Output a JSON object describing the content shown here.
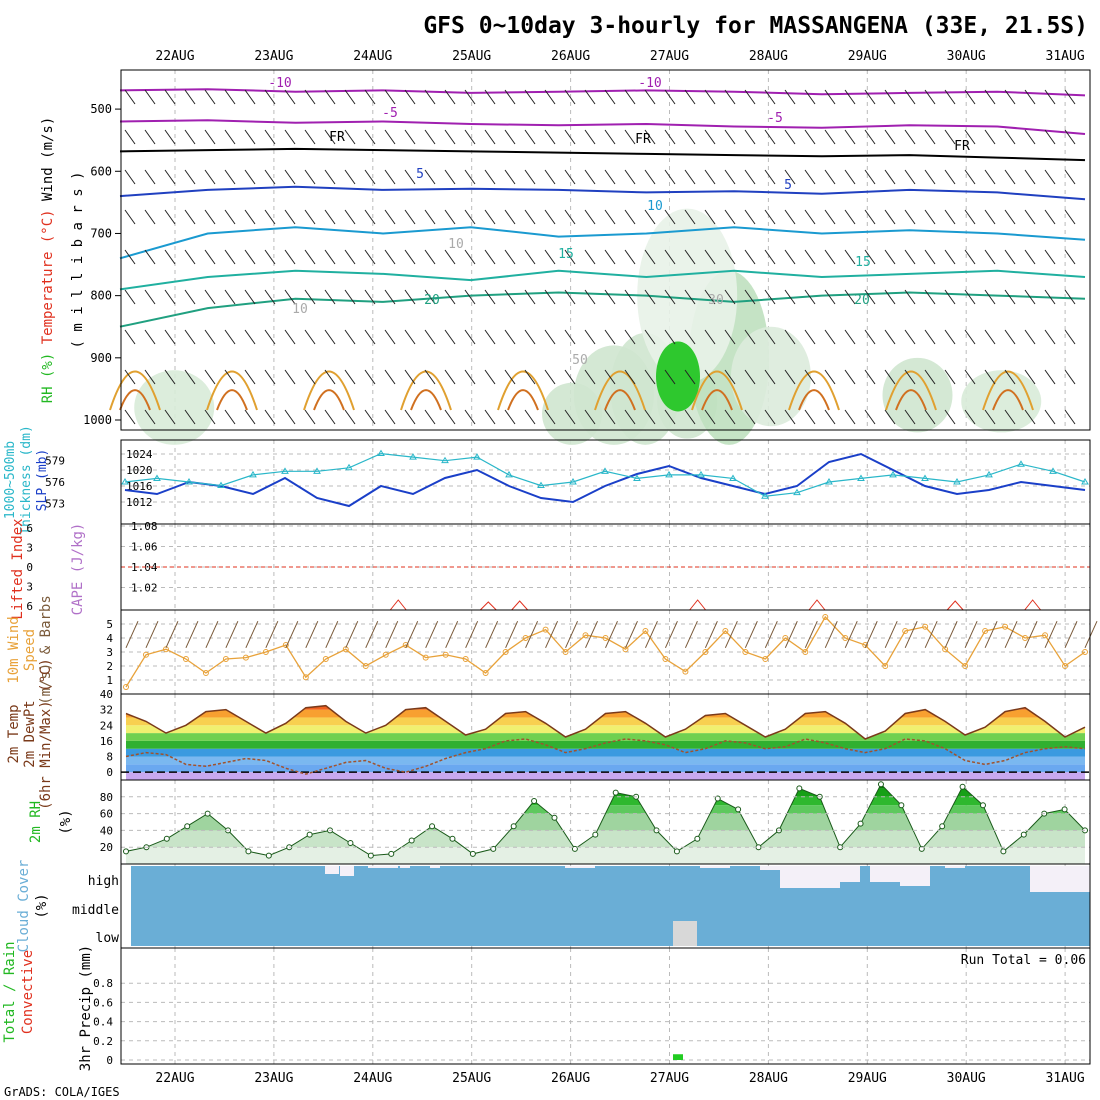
{
  "title": "GFS 0~10day 3-hourly for MASSANGENA (33E, 21.5S)",
  "credit": "GrADS: COLA/IGES",
  "colors": {
    "frame": "#000000",
    "grid": "#bbbbbb",
    "slp": "#1a3fc8",
    "thickness": "#2ab7c9",
    "lifted": "#e0301e",
    "cape": "#b070c8",
    "wind_speed": "#e8a23a",
    "wind_barb": "#7a5a3a",
    "temp": "#7a3a1a",
    "dewpt": "#a0522d",
    "rh_green": "#22b822",
    "cloud": "#6aaed6",
    "cloud_gap": "#f4f0f8",
    "precip": "#22cc22"
  },
  "chart_data": [
    {
      "type": "contour",
      "panel": "upper-air",
      "ylabel_parts": [
        "RH (%)",
        "Temperature (°C)",
        "Wind (m/s)"
      ],
      "ylabel2": "( m i l l i b a r s )",
      "yticks": [
        500,
        600,
        700,
        800,
        900,
        1000
      ],
      "ylim": [
        1000,
        450
      ],
      "xticks": [
        "22AUG",
        "23AUG",
        "24AUG",
        "25AUG",
        "26AUG",
        "27AUG",
        "28AUG",
        "29AUG",
        "30AUG",
        "31AUG"
      ],
      "contour_labels": [
        "-10",
        "-10",
        "-5",
        "-5",
        "FR",
        "FR",
        "FR",
        "5",
        "5",
        "10",
        "10",
        "10",
        "15",
        "15",
        "20",
        "20",
        "10",
        "30",
        "50"
      ],
      "isotherms": [
        {
          "level": -10,
          "color": "#a020b0",
          "p": [
            470,
            468,
            472,
            470,
            474,
            472,
            470,
            472,
            476,
            474,
            472,
            478
          ]
        },
        {
          "level": -5,
          "color": "#a020b0",
          "p": [
            520,
            518,
            522,
            520,
            524,
            526,
            524,
            528,
            530,
            526,
            528,
            540
          ]
        },
        {
          "level": 0,
          "color": "#000000",
          "p": [
            568,
            566,
            564,
            566,
            568,
            570,
            572,
            574,
            576,
            574,
            578,
            582
          ]
        },
        {
          "level": 5,
          "color": "#2040c0",
          "p": [
            640,
            630,
            625,
            630,
            628,
            630,
            634,
            632,
            636,
            630,
            634,
            645
          ]
        },
        {
          "level": 10,
          "color": "#1a9ad0",
          "p": [
            740,
            700,
            690,
            700,
            690,
            705,
            700,
            690,
            700,
            695,
            700,
            710
          ]
        },
        {
          "level": 15,
          "color": "#20b0a0",
          "p": [
            790,
            770,
            760,
            765,
            775,
            760,
            770,
            760,
            770,
            765,
            760,
            770
          ]
        },
        {
          "level": 20,
          "color": "#20a080",
          "p": [
            850,
            820,
            805,
            810,
            800,
            795,
            800,
            810,
            800,
            795,
            800,
            805
          ]
        }
      ]
    },
    {
      "type": "line",
      "panel": "slp-thickness",
      "ylabel_left": [
        "1000~500mb",
        "Thickness (dm)"
      ],
      "ylabel_right": "SLP (mb)",
      "yticks_left": [
        573,
        576,
        579
      ],
      "yticks_right": [
        1012,
        1016,
        1020,
        1024
      ],
      "series": [
        {
          "name": "SLP (mb)",
          "values": [
            1015,
            1014,
            1017,
            1016,
            1014,
            1018,
            1013,
            1011,
            1016,
            1014,
            1018,
            1020,
            1016,
            1013,
            1012,
            1016,
            1019,
            1021,
            1018,
            1016,
            1014,
            1016,
            1022,
            1024,
            1020,
            1016,
            1014,
            1015,
            1017,
            1016,
            1015
          ]
        },
        {
          "name": "1000~500mb Thickness (dm)",
          "values": [
            576,
            576.5,
            576,
            575.5,
            577,
            577.5,
            577.5,
            578,
            580,
            579.5,
            579,
            579.5,
            577,
            575.5,
            576,
            577.5,
            576.5,
            577,
            577,
            576.5,
            574,
            574.5,
            576,
            576.5,
            577,
            576.5,
            576,
            577,
            578.5,
            577.5,
            576
          ]
        }
      ]
    },
    {
      "type": "line",
      "panel": "stability",
      "ylabel_left": "Lifted Index",
      "ylabel_right": "CAPE (J/kg)",
      "yticks_left": [
        -6,
        -3,
        0,
        3,
        6
      ],
      "yticks_right": [
        1.02,
        1.04,
        1.06,
        1.08
      ],
      "cape_points": [
        {
          "x": 15.2,
          "y": 10
        },
        {
          "x": 19.5,
          "y": 8
        },
        {
          "x": 21,
          "y": 9
        },
        {
          "x": 29.5,
          "y": 10
        },
        {
          "x": 35.2,
          "y": 10
        },
        {
          "x": 41.8,
          "y": 9
        },
        {
          "x": 45.5,
          "y": 10
        }
      ]
    },
    {
      "type": "line",
      "panel": "wind",
      "ylabel": [
        "10m Wind",
        "Speed",
        "(m/s) & Barbs"
      ],
      "yticks": [
        1,
        2,
        3,
        4,
        5
      ],
      "ylim": [
        0,
        6
      ],
      "series": [
        {
          "name": "Speed",
          "values": [
            0.5,
            2.8,
            3.2,
            2.5,
            1.5,
            2.5,
            2.6,
            3.0,
            3.5,
            1.2,
            2.5,
            3.2,
            2.0,
            2.8,
            3.5,
            2.6,
            2.8,
            2.5,
            1.5,
            3.0,
            4.0,
            4.6,
            3.0,
            4.2,
            4.0,
            3.2,
            4.5,
            2.5,
            1.6,
            3.0,
            4.5,
            3.0,
            2.5,
            4.0,
            3.0,
            5.5,
            4.0,
            3.5,
            2.0,
            4.5,
            4.8,
            3.2,
            2.0,
            4.5,
            4.8,
            4.0,
            4.2,
            2.0,
            3.0
          ]
        }
      ]
    },
    {
      "type": "area",
      "panel": "temperature",
      "ylabel": [
        "2m Temp",
        "2m DewPt",
        "(6hr Min/Max) (°C)"
      ],
      "yticks": [
        0,
        8,
        16,
        24,
        32,
        40
      ],
      "ylim": [
        -4,
        40
      ],
      "series": [
        {
          "name": "2m Temp",
          "values": [
            30,
            26,
            20,
            24,
            31,
            32,
            26,
            20,
            25,
            33,
            34,
            26,
            20,
            24,
            32,
            33,
            26,
            19,
            22,
            30,
            31,
            25,
            18,
            22,
            30,
            31,
            25,
            18,
            22,
            29,
            30,
            24,
            18,
            22,
            30,
            31,
            25,
            17,
            21,
            30,
            32,
            26,
            19,
            23,
            31,
            33,
            26,
            18,
            23
          ]
        },
        {
          "name": "2m DewPt",
          "values": [
            8,
            10,
            9,
            4,
            3,
            5,
            7,
            6,
            2,
            -1,
            2,
            5,
            6,
            2,
            0,
            3,
            7,
            10,
            12,
            16,
            17,
            14,
            10,
            12,
            15,
            17,
            16,
            14,
            10,
            12,
            16,
            15,
            12,
            13,
            17,
            15,
            12,
            10,
            12,
            17,
            16,
            12,
            6,
            4,
            6,
            10,
            12,
            13,
            12
          ]
        }
      ]
    },
    {
      "type": "area",
      "panel": "rh",
      "ylabel": [
        "2m RH",
        "(%)"
      ],
      "yticks": [
        20,
        40,
        60,
        80
      ],
      "ylim": [
        0,
        100
      ],
      "series": [
        {
          "name": "2m RH",
          "values": [
            15,
            20,
            30,
            45,
            60,
            40,
            15,
            10,
            20,
            35,
            40,
            25,
            10,
            12,
            28,
            45,
            30,
            12,
            18,
            45,
            75,
            55,
            18,
            35,
            85,
            80,
            40,
            15,
            30,
            78,
            65,
            20,
            40,
            90,
            80,
            20,
            48,
            95,
            70,
            18,
            45,
            92,
            70,
            15,
            35,
            60,
            65,
            40
          ]
        }
      ]
    },
    {
      "type": "bar",
      "panel": "cloud",
      "ylabel": [
        "Cloud Cover",
        "(%)"
      ],
      "layers": [
        "high",
        "middle",
        "low"
      ]
    },
    {
      "type": "bar",
      "panel": "precip",
      "ylabel": [
        "Total / Rain",
        "Convective",
        "3hr Precip (mm)"
      ],
      "yticks": [
        0,
        0.2,
        0.4,
        0.6,
        0.8
      ],
      "ylim": [
        0,
        1
      ],
      "annotation": "Run Total = 0.06",
      "bars": [
        {
          "x": 27.1,
          "value": 0.06
        }
      ]
    }
  ]
}
